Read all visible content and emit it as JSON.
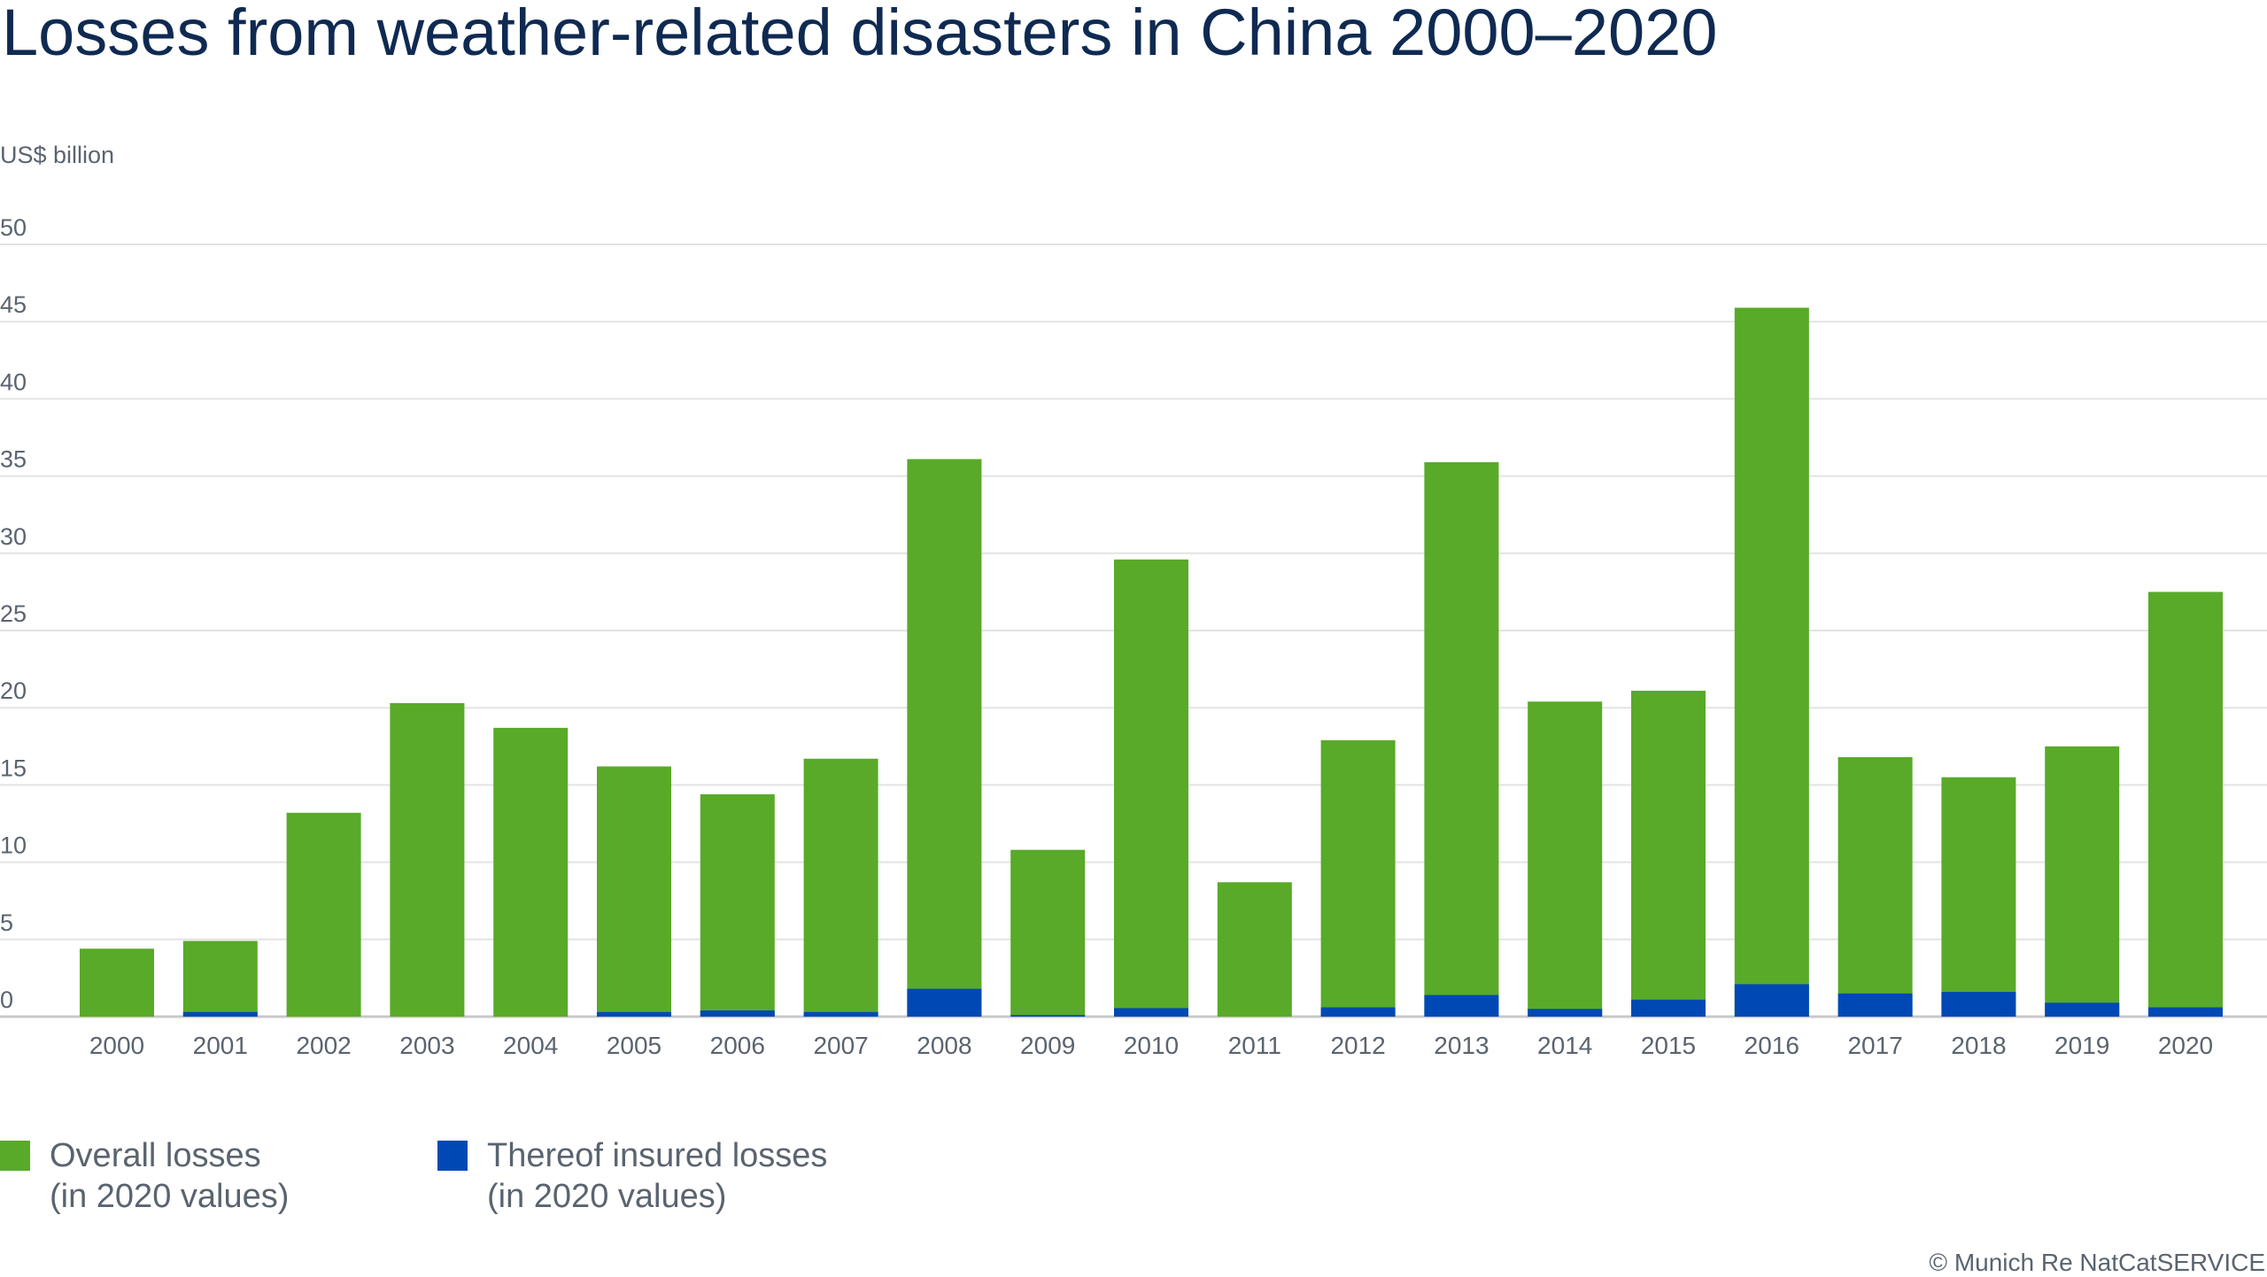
{
  "chart_data": {
    "type": "bar",
    "stacked": "overlay",
    "title": "Losses from weather-related disasters in China 2000–2020",
    "ylabel": "US$ billion",
    "xlabel": "",
    "ylim": [
      0,
      50
    ],
    "yticks": [
      0,
      5,
      10,
      15,
      20,
      25,
      30,
      35,
      40,
      45,
      50
    ],
    "grid": true,
    "legend_placement": "bottom-left",
    "categories": [
      "2000",
      "2001",
      "2002",
      "2003",
      "2004",
      "2005",
      "2006",
      "2007",
      "2008",
      "2009",
      "2010",
      "2011",
      "2012",
      "2013",
      "2014",
      "2015",
      "2016",
      "2017",
      "2018",
      "2019",
      "2020"
    ],
    "series": [
      {
        "name": "Overall losses (in 2020 values)",
        "color": "#58aa28",
        "values": [
          4.4,
          4.9,
          13.2,
          20.3,
          18.7,
          16.2,
          14.4,
          16.7,
          36.1,
          10.8,
          29.6,
          8.7,
          17.9,
          35.9,
          20.4,
          21.1,
          45.9,
          16.8,
          15.5,
          17.5,
          27.5
        ]
      },
      {
        "name": "Thereof insured losses (in 2020 values)",
        "color": "#0049b4",
        "values": [
          0,
          0.3,
          0,
          0,
          0,
          0.3,
          0.4,
          0.3,
          1.8,
          0.1,
          0.55,
          0,
          0.6,
          1.4,
          0.5,
          1.1,
          2.1,
          1.5,
          1.6,
          0.9,
          0.6
        ]
      }
    ]
  },
  "legend": {
    "overall_line1": "Overall losses",
    "overall_line2": "(in 2020 values)",
    "insured_line1": "Thereof insured losses",
    "insured_line2": "(in 2020 values)"
  },
  "footer": "© Munich Re NatCatSERVICE"
}
